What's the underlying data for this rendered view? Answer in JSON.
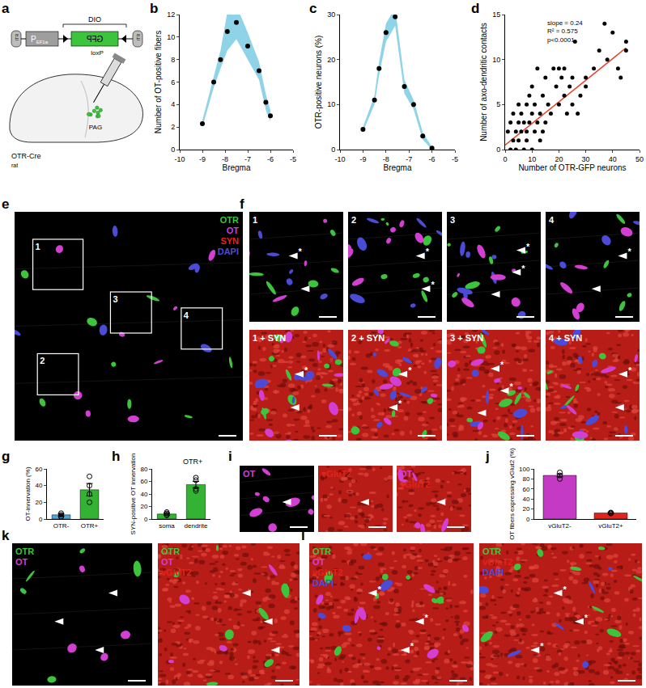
{
  "chart_data": [
    {
      "label": "b",
      "type": "line",
      "x": [
        -9,
        -8.5,
        -8.2,
        -7.9,
        -7.5,
        -7,
        -6.5,
        -6.2,
        -6
      ],
      "values": [
        2.3,
        6,
        8,
        10.5,
        11.3,
        9.2,
        7,
        4.2,
        3
      ],
      "error": [
        0.3,
        0.5,
        0.8,
        1.7,
        1.5,
        1.2,
        0.8,
        0.7,
        0.5
      ],
      "color": "#000000",
      "marker": "circle",
      "xlabel": "Bregma",
      "ylabel": "Number of OT-positive fibers",
      "xlim": [
        -10,
        -5
      ],
      "xticks": [
        -10,
        -9,
        -8,
        -7,
        -6,
        -5
      ],
      "ylim": [
        0,
        12
      ],
      "yticks": [
        0,
        2,
        4,
        6,
        8,
        10,
        12
      ]
    },
    {
      "label": "c",
      "type": "line",
      "x": [
        -9,
        -8.5,
        -8.3,
        -8,
        -7.6,
        -7.2,
        -6.8,
        -6.4,
        -6
      ],
      "values": [
        4.5,
        11,
        18,
        26,
        29.5,
        14,
        10,
        3,
        0.3
      ],
      "error": [
        0.5,
        1,
        1.5,
        2,
        2,
        1.5,
        1,
        0.8,
        0.3
      ],
      "color": "#000000",
      "marker": "circle",
      "xlabel": "Bregma",
      "ylabel": "OTR-positive neurons (%)",
      "xlim": [
        -10,
        -5
      ],
      "xticks": [
        -10,
        -9,
        -8,
        -7,
        -6,
        -5
      ],
      "ylim": [
        0,
        30
      ],
      "yticks": [
        0,
        10,
        20,
        30
      ]
    },
    {
      "label": "d",
      "type": "scatter",
      "x": [
        1,
        2,
        2,
        3,
        3,
        4,
        4,
        5,
        5,
        5,
        6,
        6,
        7,
        7,
        8,
        8,
        8,
        9,
        9,
        10,
        10,
        10,
        11,
        11,
        12,
        12,
        13,
        13,
        14,
        14,
        15,
        15,
        16,
        17,
        18,
        19,
        20,
        20,
        21,
        22,
        22,
        23,
        24,
        25,
        25,
        26,
        27,
        28,
        30,
        30,
        33,
        35,
        37,
        38,
        40,
        42,
        43,
        45,
        45
      ],
      "values": [
        2,
        0,
        3,
        1,
        4,
        2,
        0,
        3,
        1,
        5,
        2,
        4,
        0,
        3,
        5,
        1,
        2,
        6,
        3,
        0,
        4,
        7,
        2,
        5,
        3,
        9,
        1,
        4,
        2,
        6,
        3,
        8,
        5,
        4,
        9,
        7,
        5,
        9,
        8,
        6,
        9,
        4,
        7,
        5,
        8,
        12,
        4,
        6,
        8,
        7,
        9,
        11,
        14,
        10,
        13,
        9,
        8,
        11,
        12
      ],
      "color": "#000000",
      "marker": "circle",
      "fit": {
        "x": [
          0,
          45
        ],
        "values": [
          0.5,
          11.3
        ],
        "color": "#e8402a"
      },
      "annotations": [
        "slope = 0.24",
        "R² = 0.575",
        "p<0.0001"
      ],
      "xlabel": "Number of OTR-GFP neurons",
      "ylabel": "Number of axo-dendritic contacts",
      "xlim": [
        0,
        50
      ],
      "xticks": [
        0,
        10,
        20,
        30,
        40,
        50
      ],
      "ylim": [
        0,
        15
      ],
      "yticks": [
        0,
        5,
        10,
        15
      ]
    },
    {
      "label": "g",
      "type": "bar",
      "categories": [
        "OTR-",
        "OTR+"
      ],
      "values": [
        5,
        35
      ],
      "errors": [
        1.5,
        7.5
      ],
      "points": [
        [
          3,
          2.5,
          7,
          5
        ],
        [
          51,
          40,
          20,
          30
        ]
      ],
      "colors": [
        "#4aa8e0",
        "#33b233"
      ],
      "ylabel": "OT-innervation (%)",
      "ylim": [
        0,
        60
      ],
      "yticks": [
        0,
        20,
        40,
        60
      ]
    },
    {
      "label": "h",
      "type": "bar",
      "title": "OTR+",
      "categories": [
        "soma",
        "dendrite"
      ],
      "values": [
        8,
        55
      ],
      "errors": [
        1.5,
        5
      ],
      "points": [
        [
          6,
          9,
          11,
          7
        ],
        [
          66,
          62,
          48,
          45
        ]
      ],
      "colors": [
        "#33b233",
        "#33b233"
      ],
      "ylabel": "SYN-positive OT innervation",
      "ylim": [
        0,
        80
      ],
      "yticks": [
        0,
        20,
        40,
        60,
        80
      ]
    },
    {
      "label": "j",
      "type": "bar",
      "categories": [
        "vGluT2-",
        "vGluT2+"
      ],
      "values": [
        87,
        12
      ],
      "errors": [
        3,
        1
      ],
      "points": [
        [
          93,
          87,
          80
        ],
        [
          13,
          11,
          12
        ]
      ],
      "colors": [
        "#c43ac4",
        "#e0231f"
      ],
      "ylabel": "OT fibers expressing vGlut2 (%)",
      "ylim": [
        0,
        100
      ],
      "yticks": [
        0,
        20,
        40,
        60,
        80,
        100
      ]
    }
  ],
  "schematic": {
    "label": "a",
    "itr": "ITR",
    "promoter": "P",
    "promoter_sub": "EF1a",
    "gene": "GFP",
    "dio": "DIO",
    "lox": "loxP",
    "region": "PAG",
    "animal": "OTR-Cre",
    "animal_sub": "rat"
  },
  "images": {
    "star": "*",
    "panels": [
      {
        "label": "e",
        "tiles": [
          {
            "bg": "#000000",
            "blobs": [
              "#4b4bd8",
              "#3cc43c",
              "#d23fd2"
            ],
            "legend": [
              {
                "text": "OTR",
                "color": "#3cc43c"
              },
              {
                "text": "OT",
                "color": "#d23fd2"
              },
              {
                "text": "SYN",
                "color": "#e2231a"
              },
              {
                "text": "DAPI",
                "color": "#4b4bd8"
              }
            ],
            "insets": [
              "1",
              "2",
              "3",
              "4"
            ]
          }
        ]
      },
      {
        "label": "f",
        "tiles": [
          {
            "bg": "#000000",
            "blobs": [
              "#3cc43c",
              "#4b4bd8",
              "#d23fd2"
            ],
            "caption": "1",
            "arrows": 2,
            "stars": 1
          },
          {
            "bg": "#000000",
            "blobs": [
              "#3cc43c",
              "#4b4bd8",
              "#d23fd2"
            ],
            "caption": "2",
            "arrows": 2,
            "stars": 2
          },
          {
            "bg": "#000000",
            "blobs": [
              "#3cc43c",
              "#4b4bd8",
              "#d23fd2"
            ],
            "caption": "3",
            "arrows": 3,
            "stars": 2
          },
          {
            "bg": "#000000",
            "blobs": [
              "#3cc43c",
              "#4b4bd8",
              "#d23fd2"
            ],
            "caption": "4",
            "arrows": 2,
            "stars": 1
          },
          {
            "bg": "#b71c17",
            "blobs": [
              "#3cc43c",
              "#4b4bd8",
              "#d23fd2"
            ],
            "caption": "1 + SYN",
            "arrows": 2,
            "stars": 1
          },
          {
            "bg": "#b71c17",
            "blobs": [
              "#3cc43c",
              "#4b4bd8",
              "#d23fd2"
            ],
            "caption": "2 + SYN",
            "arrows": 2,
            "stars": 2
          },
          {
            "bg": "#b71c17",
            "blobs": [
              "#3cc43c",
              "#4b4bd8",
              "#d23fd2"
            ],
            "caption": "3 + SYN",
            "arrows": 3,
            "stars": 2
          },
          {
            "bg": "#b71c17",
            "blobs": [
              "#3cc43c",
              "#4b4bd8",
              "#d23fd2"
            ],
            "caption": "4 + SYN",
            "arrows": 2,
            "stars": 1
          }
        ]
      },
      {
        "label": "i",
        "tiles": [
          {
            "bg": "#000000",
            "blobs": [
              "#d23fd2"
            ],
            "legend": [
              {
                "text": "OT",
                "color": "#d23fd2"
              }
            ],
            "arrows": 1
          },
          {
            "bg": "#b71c17",
            "blobs": [],
            "legend": [
              {
                "text": "vGluT2",
                "color": "#e2231a"
              }
            ],
            "arrows": 1
          },
          {
            "bg": "#b71c17",
            "blobs": [
              "#d23fd2"
            ],
            "legend": [
              {
                "text": "OT",
                "color": "#d23fd2"
              },
              {
                "text": "vGluT2",
                "color": "#e2231a"
              }
            ],
            "arrows": 1
          }
        ]
      },
      {
        "label": "k",
        "tiles": [
          {
            "bg": "#000000",
            "blobs": [
              "#3cc43c",
              "#d23fd2"
            ],
            "legend": [
              {
                "text": "OTR",
                "color": "#3cc43c"
              },
              {
                "text": "OT",
                "color": "#d23fd2"
              }
            ],
            "arrows": 3
          },
          {
            "bg": "#b71c17",
            "blobs": [
              "#3cc43c",
              "#d23fd2"
            ],
            "legend": [
              {
                "text": "OTR",
                "color": "#3cc43c"
              },
              {
                "text": "OT",
                "color": "#d23fd2"
              },
              {
                "text": "vGluT2",
                "color": "#e2231a"
              }
            ],
            "arrows": 3
          }
        ]
      },
      {
        "label": "l",
        "tiles": [
          {
            "bg": "#b71c17",
            "blobs": [
              "#3cc43c",
              "#d23fd2",
              "#4b4bd8"
            ],
            "legend": [
              {
                "text": "OTR",
                "color": "#3cc43c"
              },
              {
                "text": "OT",
                "color": "#d23fd2"
              },
              {
                "text": "vGluT2",
                "color": "#e2231a"
              },
              {
                "text": "DAPI",
                "color": "#4b4bd8"
              }
            ],
            "arrows": 3,
            "stars": 3
          },
          {
            "bg": "#b71c17",
            "blobs": [
              "#3cc43c",
              "#4b4bd8"
            ],
            "legend": [
              {
                "text": "OTR",
                "color": "#3cc43c"
              },
              {
                "text": "vGluT2",
                "color": "#e2231a"
              },
              {
                "text": "DAPI",
                "color": "#4b4bd8"
              }
            ],
            "arrows": 3,
            "stars": 3
          }
        ]
      }
    ]
  }
}
